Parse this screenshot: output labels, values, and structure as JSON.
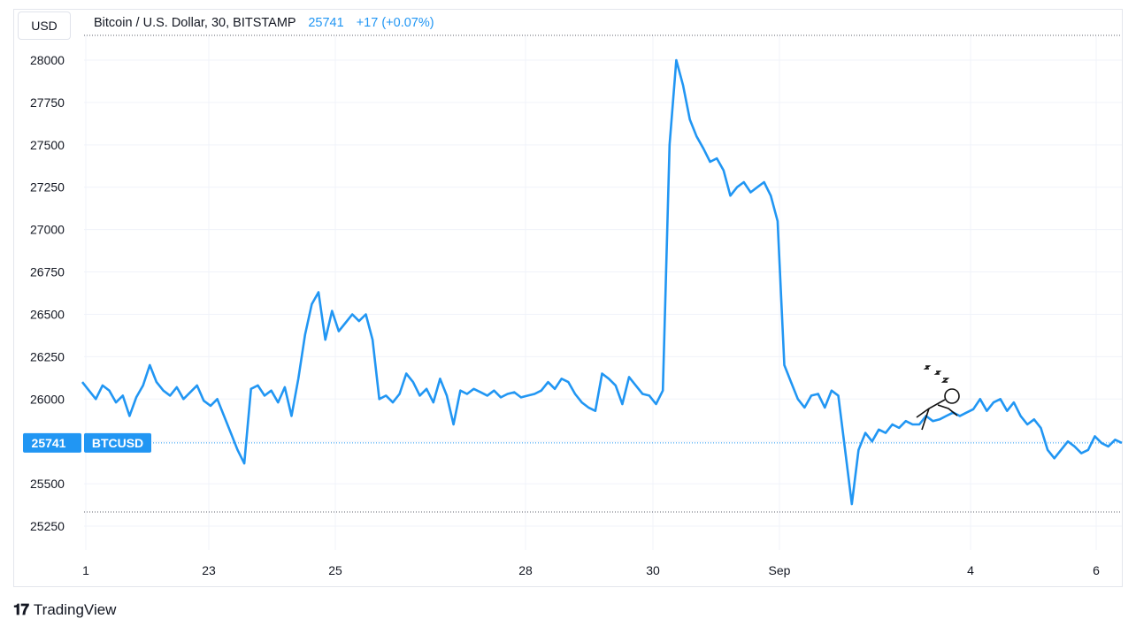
{
  "currency_button": "USD",
  "legend": {
    "title": "Bitcoin / U.S. Dollar, 30, BITSTAMP",
    "last": "25741",
    "change": "+17 (+0.07%)"
  },
  "price_tag": {
    "value": "25741",
    "symbol": "BTCUSD"
  },
  "brand": {
    "name": "TradingView"
  },
  "colors": {
    "line": "#2196f3",
    "grid": "#f0f3fa",
    "text": "#131722",
    "tag": "#2196f3"
  },
  "chart_data": {
    "type": "line",
    "title": "Bitcoin / U.S. Dollar, 30, BITSTAMP",
    "ylim": [
      25150,
      28100
    ],
    "y_ticks": [
      25250,
      25500,
      25750,
      26000,
      26250,
      26500,
      26750,
      27000,
      27250,
      27500,
      27750,
      28000
    ],
    "x_ticks": [
      "1",
      "23",
      "25",
      "28",
      "30",
      "Sep",
      "4",
      "6"
    ],
    "grid": true,
    "series": [
      {
        "values": [
          26100,
          26050,
          26000,
          26080,
          26050,
          25980,
          26020,
          25900,
          26010,
          26080,
          26200,
          26100,
          26050,
          26020,
          26070,
          26000,
          26040,
          26080,
          25990,
          25960,
          26000,
          25900,
          25800,
          25700,
          25620,
          26060,
          26080,
          26020,
          26050,
          25980,
          26070,
          25900,
          26120,
          26380,
          26560,
          26630,
          26350,
          26520,
          26400,
          26450,
          26500,
          26460,
          26500,
          26350,
          26000,
          26020,
          25980,
          26030,
          26150,
          26100,
          26020,
          26060,
          25980,
          26120,
          26020,
          25850,
          26050,
          26030,
          26060,
          26040,
          26020,
          26050,
          26010,
          26030,
          26040,
          26010,
          26020,
          26030,
          26050,
          26100,
          26060,
          26120,
          26100,
          26030,
          25980,
          25950,
          25930,
          26150,
          26120,
          26080,
          25970,
          26130,
          26080,
          26030,
          26020,
          25970,
          26050,
          27500,
          28000,
          27850,
          27650,
          27550,
          27480,
          27400,
          27420,
          27350,
          27200,
          27250,
          27280,
          27220,
          27250,
          27280,
          27200,
          27050,
          26200,
          26100,
          26000,
          25950,
          26020,
          26030,
          25950,
          26050,
          26020,
          25700,
          25380,
          25700,
          25800,
          25750,
          25820,
          25800,
          25850,
          25830,
          25870,
          25850,
          25850,
          25900,
          25870,
          25880,
          25900,
          25920,
          25900,
          25920,
          25940,
          26000,
          25930,
          25980,
          26000,
          25930,
          25980,
          25900,
          25850,
          25880,
          25830,
          25700,
          25650,
          25700,
          25750,
          25720,
          25680,
          25700,
          25780,
          25740,
          25720,
          25760,
          25741
        ]
      }
    ]
  }
}
